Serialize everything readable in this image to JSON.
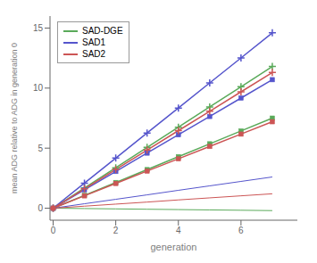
{
  "chart_data": {
    "type": "line",
    "xlabel": "generation",
    "ylabel": "mean ADG relative to ADG in generation 0",
    "x": [
      0,
      1,
      2,
      3,
      4,
      5,
      6,
      7
    ],
    "xlim": [
      -0.1,
      7.8
    ],
    "ylim": [
      -1.0,
      16.0
    ],
    "xticks": [
      0,
      2,
      4,
      6
    ],
    "yticks": [
      0,
      5,
      10,
      15
    ],
    "legend": "upper left",
    "series": [
      {
        "name": "SAD-DGE",
        "color": "#5aaa5a",
        "marker": "plus",
        "values": [
          0,
          1.69,
          3.37,
          5.06,
          6.74,
          8.43,
          10.11,
          11.8
        ]
      },
      {
        "name": "SAD-DGE",
        "color": "#5aaa5a",
        "marker": "square",
        "values": [
          0,
          1.07,
          2.14,
          3.21,
          4.29,
          5.36,
          6.43,
          7.5
        ]
      },
      {
        "name": "SAD-DGE",
        "color": "#5aaa5a",
        "marker": "none",
        "values": [
          0,
          -0.029,
          -0.057,
          -0.086,
          -0.114,
          -0.143,
          -0.171,
          -0.2
        ]
      },
      {
        "name": "SAD1",
        "color": "#5555cc",
        "marker": "plus",
        "values": [
          0,
          2.09,
          4.17,
          6.26,
          8.34,
          10.43,
          12.51,
          14.6
        ]
      },
      {
        "name": "SAD1",
        "color": "#5555cc",
        "marker": "square",
        "values": [
          0,
          1.53,
          3.06,
          4.59,
          6.11,
          7.64,
          9.17,
          10.7
        ]
      },
      {
        "name": "SAD1",
        "color": "#5555cc",
        "marker": "none",
        "values": [
          0,
          0.37,
          0.74,
          1.11,
          1.49,
          1.86,
          2.23,
          2.6
        ]
      },
      {
        "name": "SAD2",
        "color": "#cc5555",
        "marker": "plus",
        "values": [
          0,
          1.61,
          3.23,
          4.84,
          6.46,
          8.07,
          9.69,
          11.3
        ]
      },
      {
        "name": "SAD2",
        "color": "#cc5555",
        "marker": "square",
        "values": [
          0,
          1.03,
          2.06,
          3.09,
          4.11,
          5.14,
          6.17,
          7.2
        ]
      },
      {
        "name": "SAD2",
        "color": "#cc5555",
        "marker": "none",
        "values": [
          0,
          0.17,
          0.34,
          0.51,
          0.69,
          0.86,
          1.03,
          1.2
        ]
      }
    ]
  }
}
